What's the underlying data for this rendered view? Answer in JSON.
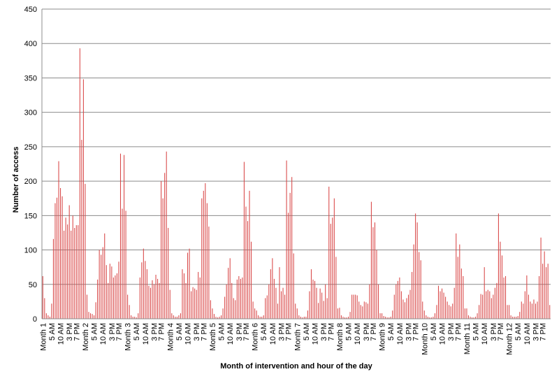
{
  "chart_data": {
    "type": "bar",
    "title": "",
    "xlabel": "Month of intervention and hour of the day",
    "ylabel": "Number of access",
    "ylim": [
      0,
      450
    ],
    "yticks": [
      0,
      50,
      100,
      150,
      200,
      250,
      300,
      350,
      400,
      450
    ],
    "grid": true,
    "bar_color": "#d94848",
    "grid_color": "#8c8c8c",
    "hours_per_month": 24,
    "hour_tick_labels": {
      "5": "5 AM",
      "10": "10 AM",
      "15": "3 PM",
      "19": "7 PM"
    },
    "months": [
      {
        "label": "Month 1",
        "values": [
          62,
          30,
          8,
          5,
          3,
          22,
          116,
          168,
          176,
          229,
          190,
          178,
          128,
          147,
          137,
          165,
          128,
          150,
          132,
          136,
          136,
          393,
          260,
          348
        ]
      },
      {
        "label": "Month 2",
        "values": [
          196,
          35,
          10,
          8,
          7,
          5,
          24,
          57,
          100,
          93,
          104,
          124,
          78,
          52,
          80,
          76,
          60,
          63,
          66,
          83,
          240,
          160,
          238,
          157
        ]
      },
      {
        "label": "Month 3",
        "values": [
          35,
          20,
          5,
          3,
          3,
          2,
          8,
          60,
          82,
          102,
          84,
          72,
          48,
          45,
          56,
          50,
          64,
          58,
          52,
          200,
          175,
          212,
          243,
          132
        ]
      },
      {
        "label": "Month 4",
        "values": [
          42,
          8,
          5,
          3,
          3,
          5,
          8,
          72,
          66,
          52,
          96,
          102,
          40,
          46,
          44,
          42,
          68,
          60,
          175,
          186,
          197,
          168,
          134,
          27
        ]
      },
      {
        "label": "Month 5",
        "values": [
          15,
          7,
          3,
          2,
          3,
          5,
          15,
          32,
          50,
          74,
          88,
          52,
          30,
          27,
          57,
          62,
          58,
          60,
          228,
          163,
          142,
          186,
          112,
          25
        ]
      },
      {
        "label": "Month 6",
        "values": [
          15,
          12,
          5,
          3,
          3,
          5,
          30,
          34,
          50,
          72,
          88,
          58,
          45,
          22,
          75,
          40,
          45,
          35,
          230,
          154,
          183,
          206,
          95,
          22
        ]
      },
      {
        "label": "Month 7",
        "values": [
          15,
          5,
          3,
          2,
          3,
          3,
          12,
          40,
          72,
          57,
          55,
          45,
          23,
          44,
          38,
          26,
          50,
          30,
          192,
          138,
          147,
          175,
          90,
          15
        ]
      },
      {
        "label": "Month 8",
        "values": [
          16,
          5,
          3,
          2,
          2,
          3,
          10,
          35,
          35,
          35,
          34,
          25,
          20,
          18,
          25,
          24,
          22,
          50,
          170,
          133,
          140,
          100,
          50,
          8
        ]
      },
      {
        "label": "Month 9",
        "values": [
          8,
          4,
          3,
          2,
          2,
          3,
          12,
          35,
          50,
          55,
          60,
          40,
          28,
          24,
          30,
          35,
          42,
          68,
          108,
          153,
          140,
          97,
          85,
          25
        ]
      },
      {
        "label": "Month 10",
        "values": [
          12,
          5,
          3,
          2,
          2,
          3,
          8,
          20,
          48,
          40,
          44,
          38,
          32,
          25,
          20,
          18,
          22,
          45,
          124,
          90,
          108,
          73,
          62,
          15
        ]
      },
      {
        "label": "Month 11",
        "values": [
          15,
          5,
          3,
          2,
          2,
          3,
          8,
          20,
          36,
          35,
          75,
          40,
          42,
          40,
          30,
          35,
          45,
          52,
          153,
          112,
          92,
          60,
          62,
          20
        ]
      },
      {
        "label": "Month 12",
        "values": [
          20,
          5,
          3,
          3,
          3,
          4,
          10,
          25,
          22,
          40,
          63,
          35,
          25,
          22,
          28,
          22,
          25,
          62,
          118,
          80,
          98,
          75,
          80,
          20
        ]
      }
    ]
  }
}
